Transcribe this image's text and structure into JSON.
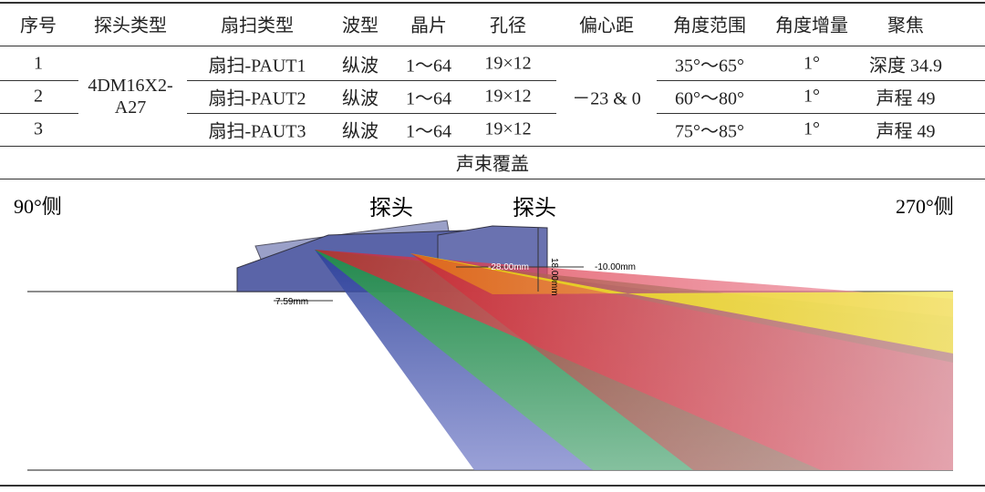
{
  "table": {
    "headers": [
      "序号",
      "探头类型",
      "扇扫类型",
      "波型",
      "晶片",
      "孔径",
      "偏心距",
      "角度范围",
      "角度增量",
      "聚焦"
    ],
    "probe_type": "4DM16X2-A27",
    "offset": "－23 & 0",
    "rows": [
      {
        "no": "1",
        "scan": "扇扫-PAUT1",
        "wave": "纵波",
        "elements": "1～64",
        "aperture": "19×12",
        "angle_range": "35°～65°",
        "increment": "1°",
        "focus": "深度 34.9"
      },
      {
        "no": "2",
        "scan": "扇扫-PAUT2",
        "wave": "纵波",
        "elements": "1～64",
        "aperture": "19×12",
        "angle_range": "60°～80°",
        "increment": "1°",
        "focus": "声程 49"
      },
      {
        "no": "3",
        "scan": "扇扫-PAUT3",
        "wave": "纵波",
        "elements": "1～64",
        "aperture": "19×12",
        "angle_range": "75°～85°",
        "increment": "1°",
        "focus": "声程 49"
      }
    ],
    "coverage_title": "声束覆盖"
  },
  "figure": {
    "left_side": "90°侧",
    "right_side": "270°侧",
    "probe_left": "探头",
    "probe_right": "探头",
    "dim_height": "18.00mm",
    "dim_offset": "-28.00mm",
    "dim_offset2": "-10.00mm",
    "dim_depth": "7.59mm"
  }
}
